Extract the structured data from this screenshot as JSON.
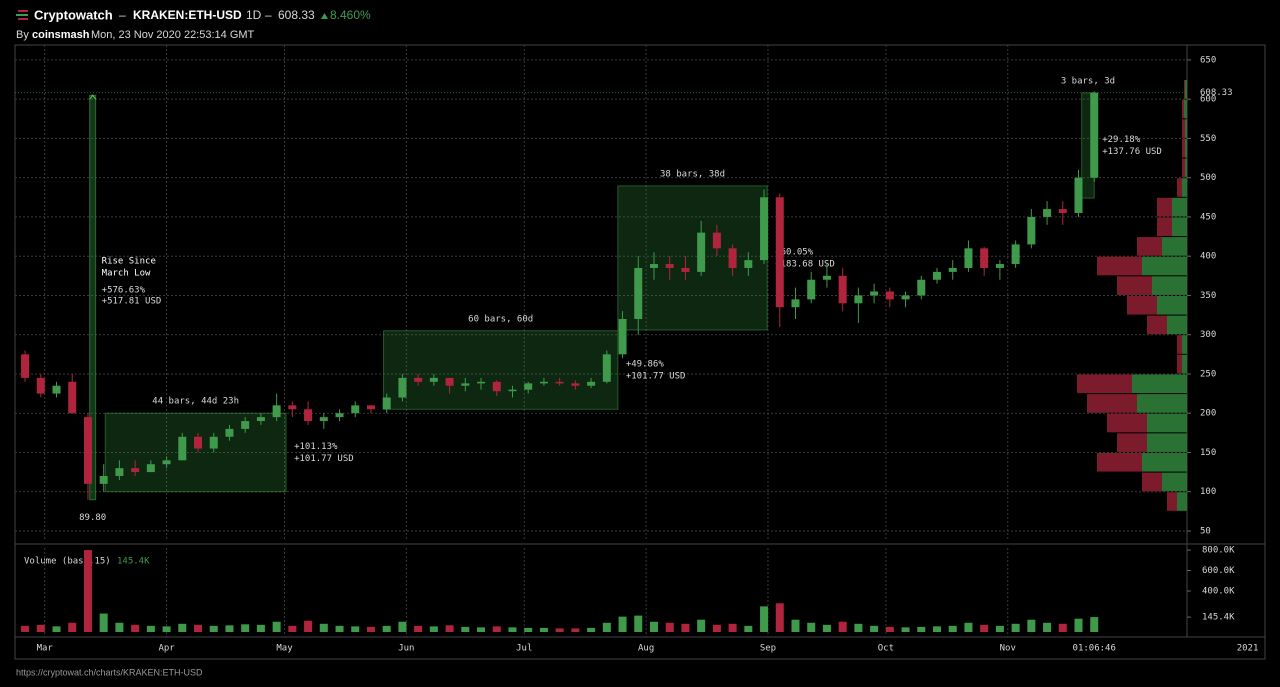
{
  "chart_data": {
    "type": "candlestick",
    "title": "Cryptowatch",
    "separator": "–",
    "symbol": "KRAKEN:ETH-USD",
    "interval": "1D",
    "last_price": 608.33,
    "change": "8.460%",
    "byline_prefix": "By",
    "author": "coinsmash",
    "timestamp": "Mon, 23 Nov 2020 22:53:14 GMT",
    "url": "https://cryptowat.ch/charts/KRAKEN:ETH-USD",
    "countdown": "01:06:46",
    "up_color": "#3f9a4c",
    "down_color": "#b0253d",
    "grid": true,
    "xlim": [
      -0.64,
      73.9
    ],
    "xticks": [
      {
        "value": 1.25,
        "label": "Mar"
      },
      {
        "value": 9,
        "label": "Apr"
      },
      {
        "value": 16.5,
        "label": "May"
      },
      {
        "value": 24.25,
        "label": "Jun"
      },
      {
        "value": 31.75,
        "label": "Jul"
      },
      {
        "value": 39.5,
        "label": "Aug"
      },
      {
        "value": 47.25,
        "label": "Sep"
      },
      {
        "value": 54.75,
        "label": "Oct"
      },
      {
        "value": 62.5,
        "label": "Nov"
      },
      {
        "value": 77.75,
        "label": "2021"
      }
    ],
    "ylim": [
      38.5,
      669
    ],
    "yticks": [
      50,
      100,
      150,
      200,
      250,
      300,
      350,
      400,
      450,
      500,
      550,
      600,
      650
    ],
    "candles": [
      {
        "open": 275,
        "high": 280,
        "low": 240,
        "close": 245
      },
      {
        "open": 245,
        "high": 250,
        "low": 220,
        "close": 225
      },
      {
        "open": 225,
        "high": 240,
        "low": 220,
        "close": 235
      },
      {
        "open": 240,
        "high": 250,
        "low": 200,
        "close": 200
      },
      {
        "open": 195,
        "high": 200,
        "low": 89.8,
        "close": 110
      },
      {
        "open": 110,
        "high": 135,
        "low": 100,
        "close": 120
      },
      {
        "open": 120,
        "high": 140,
        "low": 115,
        "close": 130
      },
      {
        "open": 130,
        "high": 140,
        "low": 120,
        "close": 125
      },
      {
        "open": 125,
        "high": 140,
        "low": 125,
        "close": 135
      },
      {
        "open": 135,
        "high": 145,
        "low": 130,
        "close": 140
      },
      {
        "open": 140,
        "high": 175,
        "low": 140,
        "close": 170
      },
      {
        "open": 170,
        "high": 175,
        "low": 150,
        "close": 155
      },
      {
        "open": 155,
        "high": 175,
        "low": 150,
        "close": 170
      },
      {
        "open": 170,
        "high": 185,
        "low": 165,
        "close": 180
      },
      {
        "open": 180,
        "high": 195,
        "low": 175,
        "close": 190
      },
      {
        "open": 190,
        "high": 200,
        "low": 185,
        "close": 195
      },
      {
        "open": 195,
        "high": 225,
        "low": 190,
        "close": 210
      },
      {
        "open": 210,
        "high": 215,
        "low": 195,
        "close": 205
      },
      {
        "open": 205,
        "high": 215,
        "low": 185,
        "close": 190
      },
      {
        "open": 190,
        "high": 200,
        "low": 180,
        "close": 195
      },
      {
        "open": 195,
        "high": 205,
        "low": 190,
        "close": 200
      },
      {
        "open": 200,
        "high": 215,
        "low": 195,
        "close": 210
      },
      {
        "open": 210,
        "high": 210,
        "low": 200,
        "close": 205
      },
      {
        "open": 205,
        "high": 225,
        "low": 200,
        "close": 220
      },
      {
        "open": 220,
        "high": 250,
        "low": 215,
        "close": 245
      },
      {
        "open": 245,
        "high": 250,
        "low": 235,
        "close": 240
      },
      {
        "open": 240,
        "high": 250,
        "low": 235,
        "close": 245
      },
      {
        "open": 245,
        "high": 245,
        "low": 225,
        "close": 235
      },
      {
        "open": 235,
        "high": 245,
        "low": 228,
        "close": 238
      },
      {
        "open": 238,
        "high": 245,
        "low": 230,
        "close": 240
      },
      {
        "open": 240,
        "high": 242,
        "low": 222,
        "close": 228
      },
      {
        "open": 228,
        "high": 235,
        "low": 220,
        "close": 230
      },
      {
        "open": 230,
        "high": 240,
        "low": 225,
        "close": 238
      },
      {
        "open": 238,
        "high": 245,
        "low": 235,
        "close": 240
      },
      {
        "open": 240,
        "high": 245,
        "low": 235,
        "close": 238
      },
      {
        "open": 238,
        "high": 242,
        "low": 230,
        "close": 235
      },
      {
        "open": 235,
        "high": 245,
        "low": 232,
        "close": 240
      },
      {
        "open": 240,
        "high": 280,
        "low": 238,
        "close": 275
      },
      {
        "open": 275,
        "high": 330,
        "low": 270,
        "close": 320
      },
      {
        "open": 320,
        "high": 400,
        "low": 300,
        "close": 385
      },
      {
        "open": 385,
        "high": 405,
        "low": 370,
        "close": 390
      },
      {
        "open": 390,
        "high": 400,
        "low": 370,
        "close": 385
      },
      {
        "open": 385,
        "high": 400,
        "low": 370,
        "close": 380
      },
      {
        "open": 380,
        "high": 445,
        "low": 375,
        "close": 430
      },
      {
        "open": 430,
        "high": 440,
        "low": 400,
        "close": 410
      },
      {
        "open": 410,
        "high": 415,
        "low": 375,
        "close": 385
      },
      {
        "open": 385,
        "high": 405,
        "low": 375,
        "close": 395
      },
      {
        "open": 395,
        "high": 485,
        "low": 390,
        "close": 475
      },
      {
        "open": 475,
        "high": 480,
        "low": 310,
        "close": 335
      },
      {
        "open": 335,
        "high": 360,
        "low": 320,
        "close": 345
      },
      {
        "open": 345,
        "high": 380,
        "low": 340,
        "close": 370
      },
      {
        "open": 370,
        "high": 390,
        "low": 360,
        "close": 375
      },
      {
        "open": 375,
        "high": 385,
        "low": 330,
        "close": 340
      },
      {
        "open": 340,
        "high": 360,
        "low": 315,
        "close": 350
      },
      {
        "open": 350,
        "high": 365,
        "low": 340,
        "close": 355
      },
      {
        "open": 355,
        "high": 360,
        "low": 335,
        "close": 345
      },
      {
        "open": 345,
        "high": 355,
        "low": 335,
        "close": 350
      },
      {
        "open": 350,
        "high": 375,
        "low": 345,
        "close": 370
      },
      {
        "open": 370,
        "high": 385,
        "low": 365,
        "close": 380
      },
      {
        "open": 380,
        "high": 395,
        "low": 370,
        "close": 385
      },
      {
        "open": 385,
        "high": 420,
        "low": 380,
        "close": 410
      },
      {
        "open": 410,
        "high": 412,
        "low": 375,
        "close": 385
      },
      {
        "open": 385,
        "high": 395,
        "low": 370,
        "close": 390
      },
      {
        "open": 390,
        "high": 420,
        "low": 385,
        "close": 415
      },
      {
        "open": 415,
        "high": 460,
        "low": 410,
        "close": 450
      },
      {
        "open": 450,
        "high": 470,
        "low": 440,
        "close": 460
      },
      {
        "open": 460,
        "high": 470,
        "low": 440,
        "close": 455
      },
      {
        "open": 455,
        "high": 510,
        "low": 450,
        "close": 500
      },
      {
        "open": 500,
        "high": 610,
        "low": 495,
        "close": 608.33
      }
    ],
    "volume_title": "Volume (base,15)",
    "volume_label": "145.4K",
    "volume": [
      60000,
      70000,
      55000,
      90000,
      800000,
      180000,
      90000,
      70000,
      60000,
      55000,
      80000,
      70000,
      60000,
      65000,
      75000,
      70000,
      100000,
      60000,
      110000,
      80000,
      60000,
      55000,
      50000,
      60000,
      100000,
      60000,
      55000,
      65000,
      50000,
      45000,
      55000,
      45000,
      40000,
      40000,
      35000,
      35000,
      40000,
      90000,
      150000,
      160000,
      100000,
      90000,
      80000,
      120000,
      70000,
      80000,
      60000,
      250000,
      280000,
      120000,
      90000,
      70000,
      100000,
      80000,
      60000,
      50000,
      45000,
      50000,
      55000,
      60000,
      90000,
      70000,
      60000,
      80000,
      120000,
      90000,
      80000,
      130000,
      145400
    ],
    "volume_ylim": [
      0,
      820000
    ],
    "volume_ticks": [
      {
        "value": 800000,
        "label": "800.0K"
      },
      {
        "value": 600000,
        "label": "600.0K"
      },
      {
        "value": 400000,
        "label": "400.0K"
      },
      {
        "value": 145400,
        "label": "145.4K"
      }
    ],
    "volume_profile": {
      "bins": [
        75,
        100,
        125,
        150,
        175,
        200,
        225,
        250,
        275,
        300,
        325,
        350,
        375,
        400,
        425,
        450,
        475,
        500,
        525,
        550,
        575,
        600,
        625
      ],
      "series": [
        {
          "name": "buy",
          "color": "#2f7d3a",
          "values": [
            10,
            25,
            45,
            40,
            40,
            50,
            55,
            5,
            5,
            20,
            30,
            35,
            45,
            25,
            15,
            15,
            5,
            2,
            2,
            2,
            3,
            2
          ]
        },
        {
          "name": "sell",
          "color": "#8a1e30",
          "values": [
            10,
            20,
            45,
            30,
            40,
            50,
            55,
            5,
            5,
            20,
            30,
            35,
            45,
            25,
            15,
            15,
            5,
            3,
            3,
            3,
            2,
            1
          ]
        }
      ]
    },
    "rise": {
      "at": 4.3,
      "low": 89.8,
      "high": 605,
      "label": [
        "Rise Since",
        "March Low"
      ],
      "pct": "+576.63%",
      "usd": "+517.81 USD",
      "low_label": "89.80"
    },
    "measures": [
      {
        "from": 5.1,
        "to": 16.6,
        "low": 100,
        "high": 200,
        "bars": "44 bars, 44d 23h",
        "pct": "+101.13%",
        "usd": "+101.77 USD"
      },
      {
        "from": 22.8,
        "to": 37.7,
        "low": 205,
        "high": 305,
        "bars": "60 bars, 60d",
        "pct": "+49.86%",
        "usd": "+101.77 USD"
      },
      {
        "from": 37.7,
        "to": 47.2,
        "low": 306,
        "high": 489.5,
        "bars": "38 bars, 38d",
        "pct": "+60.05%",
        "usd": "+183.68 USD"
      },
      {
        "from": 67.2,
        "to": 68,
        "low": 474,
        "high": 608,
        "bars": "3 bars, 3d",
        "pct": "+29.18%",
        "usd": "+137.76 USD"
      }
    ]
  }
}
